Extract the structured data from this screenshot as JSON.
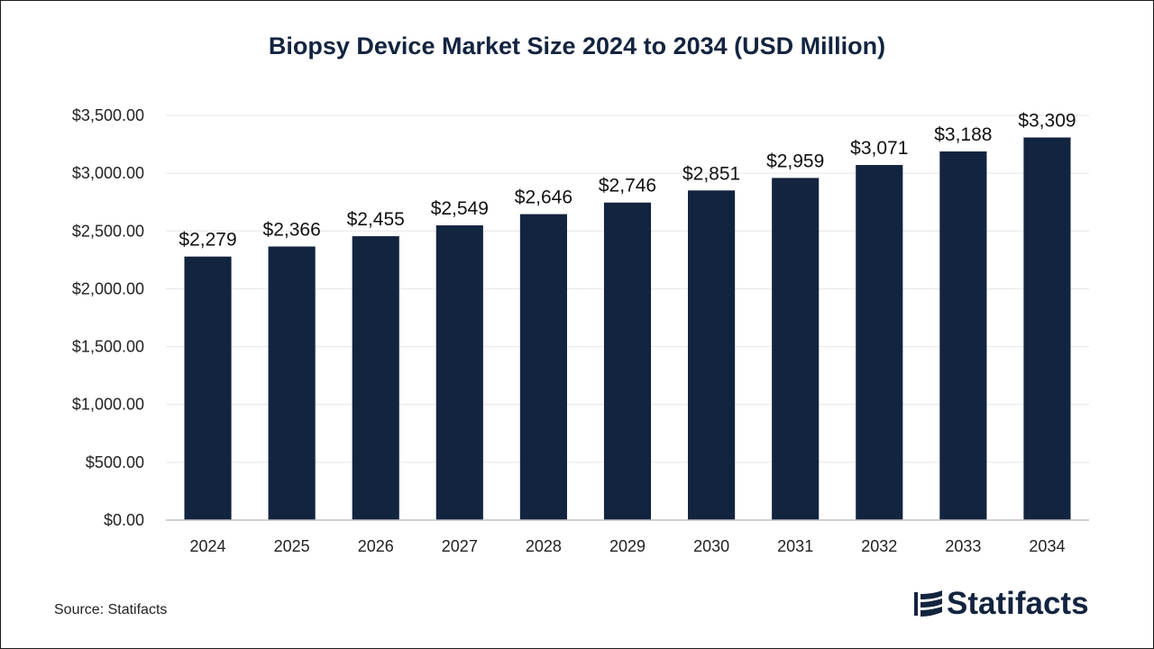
{
  "chart_data": {
    "type": "bar",
    "title": "Biopsy Device Market Size 2024 to 2034 (USD Million)",
    "categories": [
      "2024",
      "2025",
      "2026",
      "2027",
      "2028",
      "2029",
      "2030",
      "2031",
      "2032",
      "2033",
      "2034"
    ],
    "values": [
      2279,
      2366,
      2455,
      2549,
      2646,
      2746,
      2851,
      2959,
      3071,
      3188,
      3309
    ],
    "value_labels": [
      "$2,279",
      "$2,366",
      "$2,455",
      "$2,549",
      "$2,646",
      "$2,746",
      "$2,851",
      "$2,959",
      "$3,071",
      "$3,188",
      "$3,309"
    ],
    "y_ticks": [
      0,
      500,
      1000,
      1500,
      2000,
      2500,
      3000,
      3500
    ],
    "y_tick_labels": [
      "$0.00",
      "$500.00",
      "$1,000.00",
      "$1,500.00",
      "$2,000.00",
      "$2,500.00",
      "$3,000.00",
      "$3,500.00"
    ],
    "ylim": [
      0,
      3500
    ],
    "xlabel": "",
    "ylabel": "",
    "grid": true,
    "bar_color": "#13243f"
  },
  "footer": {
    "source": "Source: Statifacts",
    "brand": "Statifacts"
  }
}
